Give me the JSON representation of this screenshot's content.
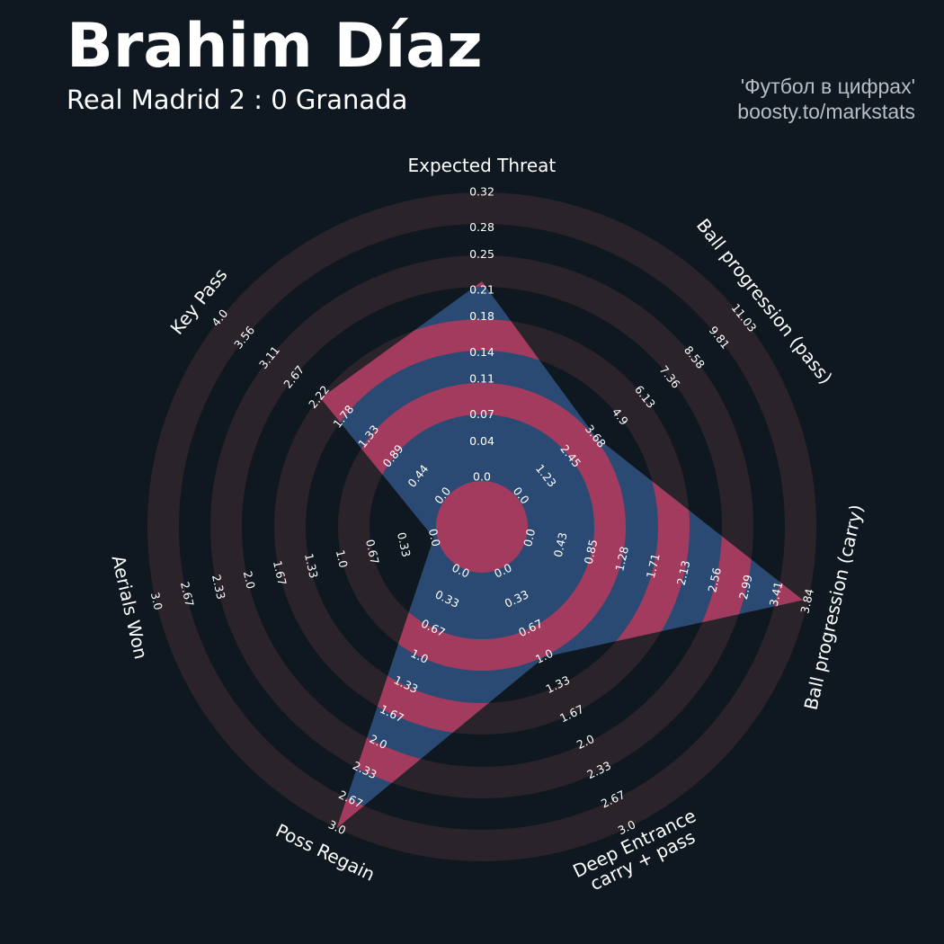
{
  "chart_data": {
    "type": "radar",
    "title": "Brahim Díaz",
    "subtitle": "Real Madrid 2 : 0 Granada",
    "credit": [
      "'Футбол в цифрах'",
      "boosty.to/markstats"
    ],
    "params": [
      "Expected Threat",
      "Ball progression (pass)",
      "Ball progression (carry)",
      "Deep Entrance\ncarry + pass",
      "Poss Regain",
      "Aerials Won",
      "Key Pass"
    ],
    "values": [
      0.22,
      3.7,
      3.77,
      1,
      3,
      0,
      2.2
    ],
    "ranges": [
      [
        0,
        0.32
      ],
      [
        0,
        11.03
      ],
      [
        0,
        3.84
      ],
      [
        0,
        3
      ],
      [
        0,
        3
      ],
      [
        0,
        3
      ],
      [
        0,
        4
      ]
    ],
    "ticks": [
      [
        {
          "value": 0,
          "label": "0.0"
        },
        0.04,
        0.07,
        0.11,
        0.14,
        0.18,
        0.21,
        0.25,
        0.28,
        0.32
      ],
      [
        {
          "value": 0,
          "label": "0.0"
        },
        1.23,
        2.45,
        3.68,
        4.9,
        6.13,
        7.36,
        8.58,
        9.81,
        11.03
      ],
      [
        {
          "value": 0,
          "label": "0.0"
        },
        0.43,
        0.85,
        1.28,
        1.71,
        2.13,
        2.56,
        2.99,
        3.41,
        3.84
      ],
      [
        {
          "value": 0,
          "label": "0.0"
        },
        0.33,
        0.67,
        {
          "value": 1,
          "label": "1.0"
        },
        1.33,
        1.67,
        {
          "value": 2,
          "label": "2.0"
        },
        2.33,
        2.67,
        {
          "value": 3,
          "label": "3.0"
        }
      ],
      [
        {
          "value": 0,
          "label": "0.0"
        },
        0.33,
        0.67,
        {
          "value": 1,
          "label": "1.0"
        },
        1.33,
        1.67,
        {
          "value": 2,
          "label": "2.0"
        },
        2.33,
        2.67,
        {
          "value": 3,
          "label": "3.0"
        }
      ],
      [
        {
          "value": 0,
          "label": "0.0"
        },
        0.33,
        0.67,
        {
          "value": 1,
          "label": "1.0"
        },
        1.33,
        1.67,
        {
          "value": 2,
          "label": "2.0"
        },
        2.33,
        2.67,
        {
          "value": 3,
          "label": "3.0"
        }
      ],
      [
        {
          "value": 0,
          "label": "0.0"
        },
        0.44,
        0.89,
        1.33,
        1.78,
        2.22,
        2.67,
        3.11,
        3.56,
        {
          "value": 4,
          "label": "4.0"
        }
      ]
    ],
    "color": "#2b4a73",
    "ring_color": "#a33b5f"
  }
}
